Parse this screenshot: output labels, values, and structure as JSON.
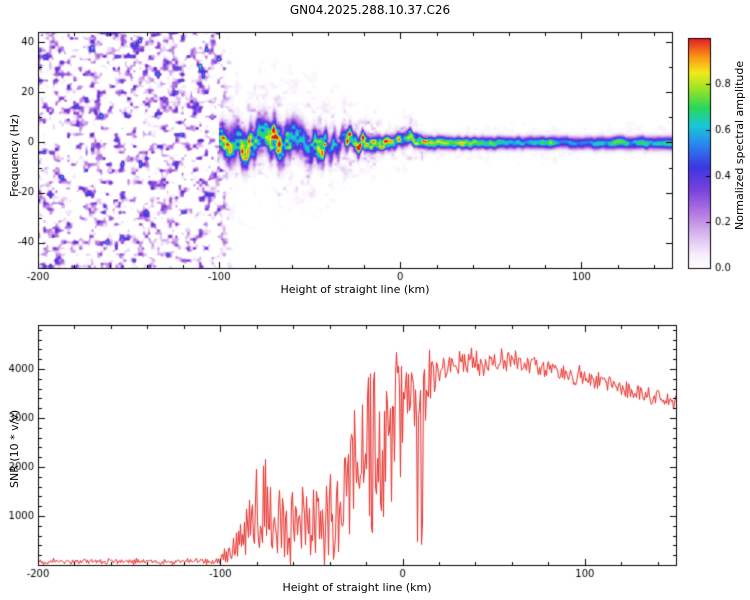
{
  "figure": {
    "title": "GN04.2025.288.10.37.C26"
  },
  "chart_data": [
    {
      "type": "heatmap",
      "name": "spectrogram",
      "xlabel": "Height of straight line (km)",
      "ylabel": "Frequency (Hz)",
      "xlim": [
        -200,
        150
      ],
      "ylim": [
        -50,
        44
      ],
      "xticks": [
        -200,
        -100,
        0,
        100
      ],
      "yticks": [
        -40,
        -20,
        0,
        20,
        40
      ],
      "grid": false,
      "colorbar": {
        "label": "Normalized spectral amplitude",
        "range": [
          0,
          1
        ],
        "ticks": [
          0.0,
          0.2,
          0.4,
          0.6,
          0.8
        ],
        "colormap": [
          [
            0.0,
            "#ffffff"
          ],
          [
            0.06,
            "#f6eefb"
          ],
          [
            0.14,
            "#ddbdf0"
          ],
          [
            0.24,
            "#b37ae0"
          ],
          [
            0.34,
            "#7a42dd"
          ],
          [
            0.44,
            "#3c37e0"
          ],
          [
            0.54,
            "#2b86f0"
          ],
          [
            0.62,
            "#18c8d8"
          ],
          [
            0.7,
            "#2ad858"
          ],
          [
            0.78,
            "#9ae426"
          ],
          [
            0.85,
            "#f2ea1a"
          ],
          [
            0.92,
            "#fb9616"
          ],
          [
            1.0,
            "#e41c24"
          ]
        ]
      },
      "noise_field": {
        "x_range": [
          -200,
          -98
        ],
        "coverage": 0.5,
        "amplitude_range": [
          0,
          0.5
        ],
        "note": "incoherent purple speckle noise fills the panel left of -100 km; no coherent signal"
      },
      "signal_track": {
        "columns": [
          "x_km",
          "center_hz",
          "sigma_hz",
          "peak_amplitude"
        ],
        "points": [
          [
            -100,
            2,
            4.0,
            0.85
          ],
          [
            -95,
            -2,
            4.5,
            0.9
          ],
          [
            -90,
            1,
            5.0,
            0.9
          ],
          [
            -85,
            -4,
            4.5,
            0.85
          ],
          [
            -80,
            2,
            5.0,
            0.9
          ],
          [
            -75,
            5,
            4.5,
            0.9
          ],
          [
            -70,
            2,
            5.0,
            0.95
          ],
          [
            -65,
            -2,
            5.0,
            0.9
          ],
          [
            -60,
            3,
            4.5,
            0.9
          ],
          [
            -55,
            0,
            4.5,
            0.85
          ],
          [
            -50,
            -3,
            4.5,
            0.9
          ],
          [
            -45,
            -1,
            4.0,
            0.95
          ],
          [
            -40,
            -3,
            4.0,
            0.9
          ],
          [
            -35,
            -1,
            3.5,
            0.9
          ],
          [
            -30,
            1,
            3.0,
            0.95
          ],
          [
            -25,
            0,
            2.6,
            1.0
          ],
          [
            -20,
            1,
            2.4,
            1.0
          ],
          [
            -15,
            0,
            2.2,
            1.0
          ],
          [
            -10,
            0,
            2.0,
            0.95
          ],
          [
            -5,
            0,
            1.9,
            1.0
          ],
          [
            0,
            1,
            1.9,
            0.95
          ],
          [
            5,
            2,
            2.0,
            0.9
          ],
          [
            10,
            1,
            1.8,
            0.95
          ],
          [
            15,
            0,
            1.7,
            0.9
          ],
          [
            20,
            0,
            1.7,
            0.85
          ],
          [
            30,
            0,
            1.6,
            0.8
          ],
          [
            45,
            0,
            1.6,
            0.75
          ],
          [
            70,
            0,
            1.6,
            0.7
          ],
          [
            100,
            0,
            1.6,
            0.68
          ],
          [
            150,
            0,
            1.7,
            0.68
          ]
        ]
      }
    },
    {
      "type": "line",
      "name": "snr",
      "series_color": "#e62e2a",
      "xlabel": "Height of straight line (km)",
      "ylabel": "SNR (10 * v/v)",
      "xlim": [
        -200,
        150
      ],
      "ylim": [
        0,
        4900
      ],
      "xticks": [
        -200,
        -100,
        0,
        100
      ],
      "yticks": [
        1000,
        2000,
        3000,
        4000
      ],
      "envelope": {
        "columns": [
          "x_km",
          "snr_mid",
          "snr_halfrange"
        ],
        "points": [
          [
            -200,
            70,
            60
          ],
          [
            -150,
            70,
            60
          ],
          [
            -120,
            70,
            60
          ],
          [
            -102,
            80,
            70
          ],
          [
            -98,
            150,
            140
          ],
          [
            -94,
            250,
            240
          ],
          [
            -90,
            450,
            430
          ],
          [
            -85,
            700,
            680
          ],
          [
            -80,
            1000,
            950
          ],
          [
            -76,
            1200,
            1150
          ],
          [
            -72,
            900,
            870
          ],
          [
            -68,
            1000,
            950
          ],
          [
            -64,
            800,
            780
          ],
          [
            -60,
            900,
            870
          ],
          [
            -56,
            700,
            680
          ],
          [
            -52,
            800,
            770
          ],
          [
            -48,
            900,
            870
          ],
          [
            -44,
            800,
            780
          ],
          [
            -40,
            900,
            870
          ],
          [
            -36,
            1100,
            1050
          ],
          [
            -32,
            1400,
            1350
          ],
          [
            -28,
            1700,
            1650
          ],
          [
            -24,
            2000,
            1950
          ],
          [
            -20,
            2300,
            2250
          ],
          [
            -17,
            2500,
            2300
          ],
          [
            -14,
            2600,
            1900
          ],
          [
            -11,
            2500,
            1900
          ],
          [
            -8,
            2700,
            1700
          ],
          [
            -5,
            2900,
            1500
          ],
          [
            -2,
            3100,
            1300
          ],
          [
            0,
            3200,
            1200
          ],
          [
            3,
            3300,
            1000
          ],
          [
            6,
            3400,
            900
          ],
          [
            10,
            3600,
            700
          ],
          [
            14,
            3750,
            550
          ],
          [
            18,
            3900,
            400
          ],
          [
            22,
            4000,
            300
          ],
          [
            26,
            4050,
            280
          ],
          [
            30,
            4100,
            260
          ],
          [
            40,
            4150,
            240
          ],
          [
            50,
            4150,
            230
          ],
          [
            60,
            4100,
            220
          ],
          [
            70,
            4050,
            210
          ],
          [
            80,
            4000,
            200
          ],
          [
            90,
            3900,
            200
          ],
          [
            100,
            3800,
            190
          ],
          [
            110,
            3700,
            190
          ],
          [
            120,
            3600,
            180
          ],
          [
            130,
            3500,
            180
          ],
          [
            140,
            3420,
            170
          ],
          [
            150,
            3350,
            170
          ]
        ]
      }
    }
  ]
}
